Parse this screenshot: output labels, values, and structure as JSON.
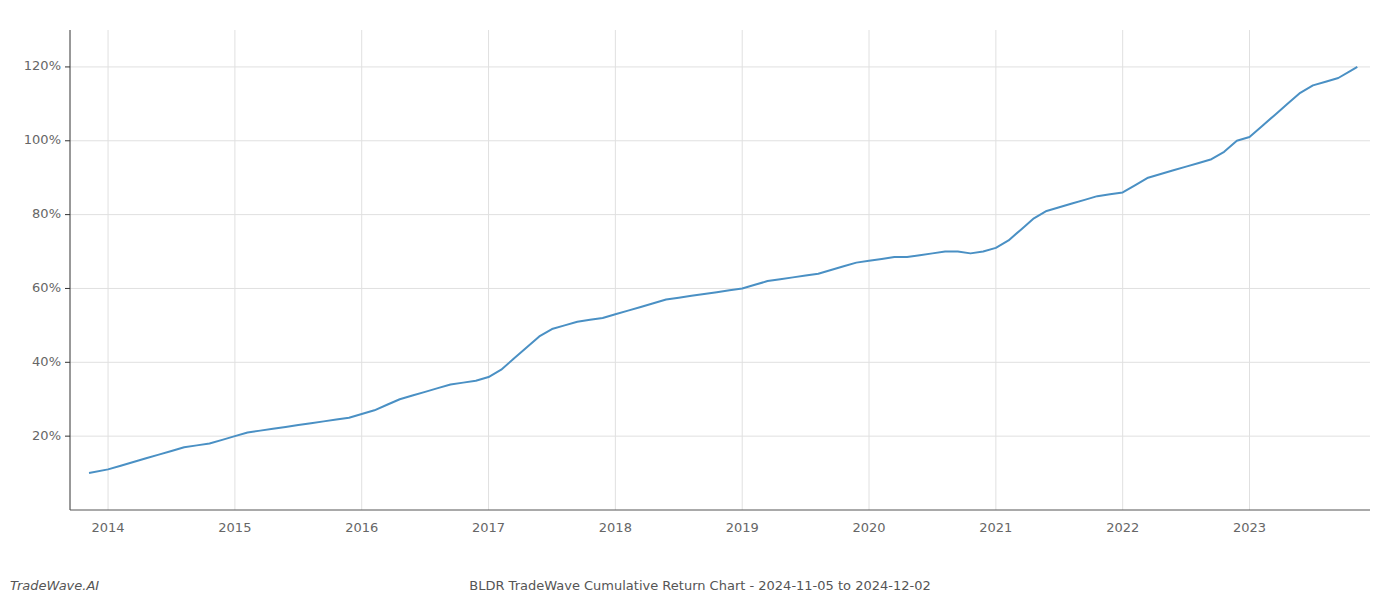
{
  "chart_data": {
    "type": "line",
    "title": "BLDR TradeWave Cumulative Return Chart - 2024-11-05 to 2024-12-02",
    "annotations": [
      "TradeWave.AI"
    ],
    "x": [
      2013.85,
      2014.0,
      2014.1,
      2014.2,
      2014.3,
      2014.4,
      2014.5,
      2014.6,
      2014.7,
      2014.8,
      2014.9,
      2015.0,
      2015.1,
      2015.2,
      2015.3,
      2015.4,
      2015.5,
      2015.6,
      2015.7,
      2015.8,
      2015.9,
      2016.0,
      2016.1,
      2016.2,
      2016.3,
      2016.4,
      2016.5,
      2016.6,
      2016.7,
      2016.8,
      2016.9,
      2017.0,
      2017.1,
      2017.2,
      2017.3,
      2017.4,
      2017.5,
      2017.6,
      2017.7,
      2017.8,
      2017.9,
      2018.0,
      2018.1,
      2018.2,
      2018.3,
      2018.4,
      2018.5,
      2018.6,
      2018.7,
      2018.8,
      2018.9,
      2019.0,
      2019.1,
      2019.2,
      2019.3,
      2019.4,
      2019.5,
      2019.6,
      2019.7,
      2019.8,
      2019.9,
      2020.0,
      2020.1,
      2020.2,
      2020.3,
      2020.4,
      2020.5,
      2020.6,
      2020.7,
      2020.8,
      2020.9,
      2021.0,
      2021.1,
      2021.2,
      2021.3,
      2021.4,
      2021.5,
      2021.6,
      2021.7,
      2021.8,
      2021.9,
      2022.0,
      2022.1,
      2022.2,
      2022.3,
      2022.4,
      2022.5,
      2022.6,
      2022.7,
      2022.8,
      2022.9,
      2023.0,
      2023.1,
      2023.2,
      2023.3,
      2023.4,
      2023.5,
      2023.6,
      2023.7,
      2023.8,
      2023.85
    ],
    "values": [
      10,
      11,
      12,
      13,
      14,
      15,
      16,
      17,
      17.5,
      18,
      19,
      20,
      21,
      21.5,
      22,
      22.5,
      23,
      23.5,
      24,
      24.5,
      25,
      26,
      27,
      28.5,
      30,
      31,
      32,
      33,
      34,
      34.5,
      35,
      36,
      38,
      41,
      44,
      47,
      49,
      50,
      51,
      51.5,
      52,
      53,
      54,
      55,
      56,
      57,
      57.5,
      58,
      58.5,
      59,
      59.5,
      60,
      61,
      62,
      62.5,
      63,
      63.5,
      64,
      65,
      66,
      67,
      67.5,
      68,
      68.5,
      68.5,
      69,
      69.5,
      70,
      70,
      69.5,
      70,
      71,
      73,
      76,
      79,
      81,
      82,
      83,
      84,
      85,
      85.5,
      86,
      88,
      90,
      91,
      92,
      93,
      94,
      95,
      97,
      100,
      101,
      104,
      107,
      110,
      113,
      115,
      116,
      117,
      119,
      120
    ],
    "color": "#4a90c4",
    "xlim": [
      2013.7,
      2023.95
    ],
    "xticks": [
      2014,
      2015,
      2016,
      2017,
      2018,
      2019,
      2020,
      2021,
      2022,
      2023
    ],
    "ylim": [
      0,
      130
    ],
    "yticks": [
      {
        "value": 20,
        "label": "20%"
      },
      {
        "value": 40,
        "label": "40%"
      },
      {
        "value": 60,
        "label": "60%"
      },
      {
        "value": 80,
        "label": "80%"
      },
      {
        "value": 100,
        "label": "100%"
      },
      {
        "value": 120,
        "label": "120%"
      }
    ],
    "grid": true
  }
}
